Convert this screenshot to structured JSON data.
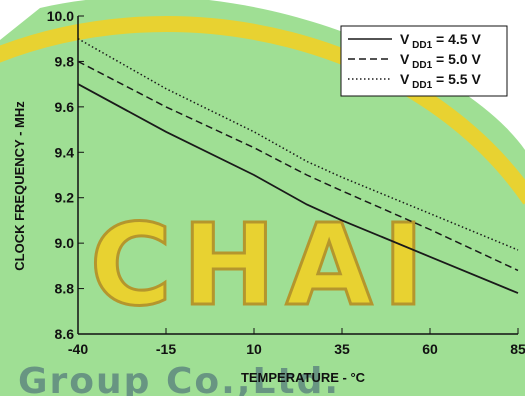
{
  "watermark": {
    "brand": "CHAI",
    "company": "Group Co.,Ltd.",
    "colors": {
      "fill": "#f5d020",
      "outline": "#b88a1c",
      "company": "#3c5a74",
      "band": "#7fd470"
    }
  },
  "chart_data": {
    "type": "line",
    "title": "",
    "xlabel": "TEMPERATURE - °C",
    "ylabel": "CLOCK FREQUENCY - MHz",
    "xlim": [
      -40,
      85
    ],
    "ylim": [
      8.6,
      10.0
    ],
    "x_ticks": [
      "-40",
      "-15",
      "10",
      "35",
      "60",
      "85"
    ],
    "y_ticks": [
      "10.0",
      "9.8",
      "9.6",
      "9.4",
      "9.2",
      "9.0",
      "8.8",
      "8.6"
    ],
    "grid": false,
    "legend_position": "top-right",
    "series": [
      {
        "label": "V",
        "subscript": "DD1",
        "value": "= 4.5 V",
        "style": "solid",
        "points": [
          [
            -40,
            9.7
          ],
          [
            -15,
            9.49
          ],
          [
            10,
            9.3
          ],
          [
            25,
            9.17
          ],
          [
            35,
            9.1
          ],
          [
            60,
            8.94
          ],
          [
            85,
            8.78
          ]
        ]
      },
      {
        "label": "V",
        "subscript": "DD1",
        "value": "= 5.0 V",
        "style": "dashed",
        "points": [
          [
            -40,
            9.8
          ],
          [
            -15,
            9.6
          ],
          [
            10,
            9.42
          ],
          [
            25,
            9.3
          ],
          [
            35,
            9.23
          ],
          [
            60,
            9.06
          ],
          [
            85,
            8.88
          ]
        ]
      },
      {
        "label": "V",
        "subscript": "DD1",
        "value": "= 5.5 V",
        "style": "dotted",
        "points": [
          [
            -40,
            9.9
          ],
          [
            -15,
            9.68
          ],
          [
            10,
            9.49
          ],
          [
            25,
            9.36
          ],
          [
            35,
            9.29
          ],
          [
            60,
            9.13
          ],
          [
            85,
            8.97
          ]
        ]
      }
    ],
    "colors": {
      "lines": "#1a1a1a",
      "axis": "#111111"
    }
  }
}
